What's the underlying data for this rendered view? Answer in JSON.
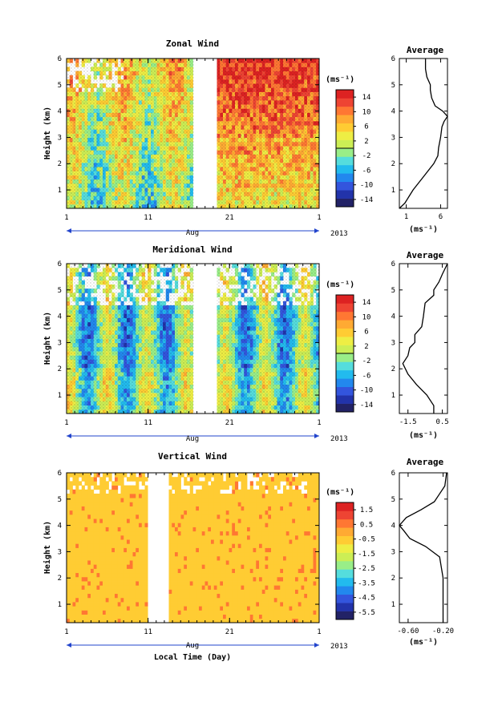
{
  "figure": {
    "x_axis_label": "Local Time (Day)",
    "month_label": "Aug",
    "year_label": "2013",
    "height_axis_label": "Height (km)",
    "colorbar_unit": "(ms⁻¹)",
    "average_title": "Average",
    "average_unit": "(ms⁻¹)"
  },
  "chart_data": [
    {
      "type": "heatmap",
      "title": "Zonal Wind",
      "xlabel": "",
      "ylabel": "Height (km)",
      "x_ticks": [
        "1",
        "11",
        "21",
        "1"
      ],
      "y_ticks": [
        "1",
        "2",
        "3",
        "4",
        "5",
        "6"
      ],
      "ylim": [
        0.3,
        6
      ],
      "data_gap_days": [
        16.6,
        19.4
      ],
      "colorbar": {
        "label": "(ms⁻¹)",
        "ticks": [
          "14",
          "10",
          "6",
          "2",
          "-2",
          "-6",
          "-10",
          "-14"
        ],
        "range": [
          -16,
          16
        ],
        "colors": [
          "#222266",
          "#2233aa",
          "#3355dd",
          "#2288ee",
          "#22bbee",
          "#55dddd",
          "#99ee88",
          "#ccee55",
          "#eeee44",
          "#ffcc33",
          "#ffaa33",
          "#ff7733",
          "#ee4433",
          "#dd2222"
        ]
      },
      "average_profile": {
        "xlabel": "(ms⁻¹)",
        "x_ticks": [
          "1",
          "6"
        ],
        "xlim": [
          0,
          7
        ],
        "height_km": [
          0.3,
          0.5,
          1.0,
          1.5,
          2.0,
          2.3,
          2.6,
          3.0,
          3.4,
          3.6,
          3.8,
          4.0,
          4.2,
          4.5,
          4.8,
          5.0,
          5.3,
          5.6,
          6.0
        ],
        "values": [
          0.0,
          0.8,
          2.0,
          3.5,
          5.0,
          5.6,
          5.7,
          6.0,
          6.2,
          6.5,
          7.0,
          6.3,
          5.2,
          4.7,
          4.5,
          4.5,
          4.0,
          3.8,
          3.8
        ]
      }
    },
    {
      "type": "heatmap",
      "title": "Meridional Wind",
      "xlabel": "",
      "ylabel": "Height (km)",
      "x_ticks": [
        "1",
        "11",
        "21",
        "1"
      ],
      "y_ticks": [
        "1",
        "2",
        "3",
        "4",
        "5",
        "6"
      ],
      "ylim": [
        0.3,
        6
      ],
      "data_gap_days": [
        16.6,
        19.4
      ],
      "colorbar": {
        "label": "(ms⁻¹)",
        "ticks": [
          "14",
          "10",
          "6",
          "2",
          "-2",
          "-6",
          "-10",
          "-14"
        ],
        "range": [
          -16,
          16
        ],
        "colors": [
          "#222266",
          "#2233aa",
          "#3355dd",
          "#2288ee",
          "#22bbee",
          "#55dddd",
          "#99ee88",
          "#ccee55",
          "#eeee44",
          "#ffcc33",
          "#ffaa33",
          "#ff7733",
          "#ee4433",
          "#dd2222"
        ]
      },
      "average_profile": {
        "xlabel": "(ms⁻¹)",
        "x_ticks": [
          "-1.5",
          "0.5"
        ],
        "xlim": [
          -2.0,
          0.8
        ],
        "height_km": [
          0.3,
          0.6,
          1.0,
          1.4,
          1.8,
          2.2,
          2.5,
          2.8,
          3.0,
          3.3,
          3.6,
          4.0,
          4.5,
          4.8,
          5.0,
          5.3,
          5.6,
          6.0
        ],
        "values": [
          0.0,
          0.0,
          -0.4,
          -1.0,
          -1.5,
          -1.8,
          -1.5,
          -1.4,
          -1.1,
          -1.1,
          -0.7,
          -0.6,
          -0.5,
          0.0,
          0.0,
          0.3,
          0.5,
          0.8
        ]
      }
    },
    {
      "type": "heatmap",
      "title": "Vertical Wind",
      "xlabel": "Local Time (Day)",
      "ylabel": "Height (km)",
      "x_ticks": [
        "1",
        "11",
        "21",
        "1"
      ],
      "y_ticks": [
        "1",
        "2",
        "3",
        "4",
        "5",
        "6"
      ],
      "ylim": [
        0.3,
        6
      ],
      "data_gap_days": [
        11.0,
        13.4
      ],
      "colorbar": {
        "label": "(ms⁻¹)",
        "ticks": [
          "1.5",
          "0.5",
          "-0.5",
          "-1.5",
          "-2.5",
          "-3.5",
          "-4.5",
          "-5.5"
        ],
        "range": [
          -6,
          2
        ],
        "colors": [
          "#222266",
          "#2233aa",
          "#3355dd",
          "#2288ee",
          "#22bbee",
          "#55dddd",
          "#99ee88",
          "#ccee55",
          "#eeee44",
          "#ffcc33",
          "#ffaa33",
          "#ff7733",
          "#ee4433",
          "#dd2222"
        ]
      },
      "average_profile": {
        "xlabel": "(ms⁻¹)",
        "x_ticks": [
          "-0.60",
          "-0.20"
        ],
        "xlim": [
          -0.7,
          -0.15
        ],
        "height_km": [
          0.3,
          1.0,
          2.0,
          2.8,
          3.2,
          3.5,
          3.8,
          4.0,
          4.3,
          4.6,
          4.9,
          5.2,
          5.5,
          6.0
        ],
        "values": [
          -0.2,
          -0.2,
          -0.2,
          -0.24,
          -0.4,
          -0.58,
          -0.65,
          -0.7,
          -0.62,
          -0.45,
          -0.3,
          -0.24,
          -0.18,
          -0.16
        ]
      }
    }
  ]
}
